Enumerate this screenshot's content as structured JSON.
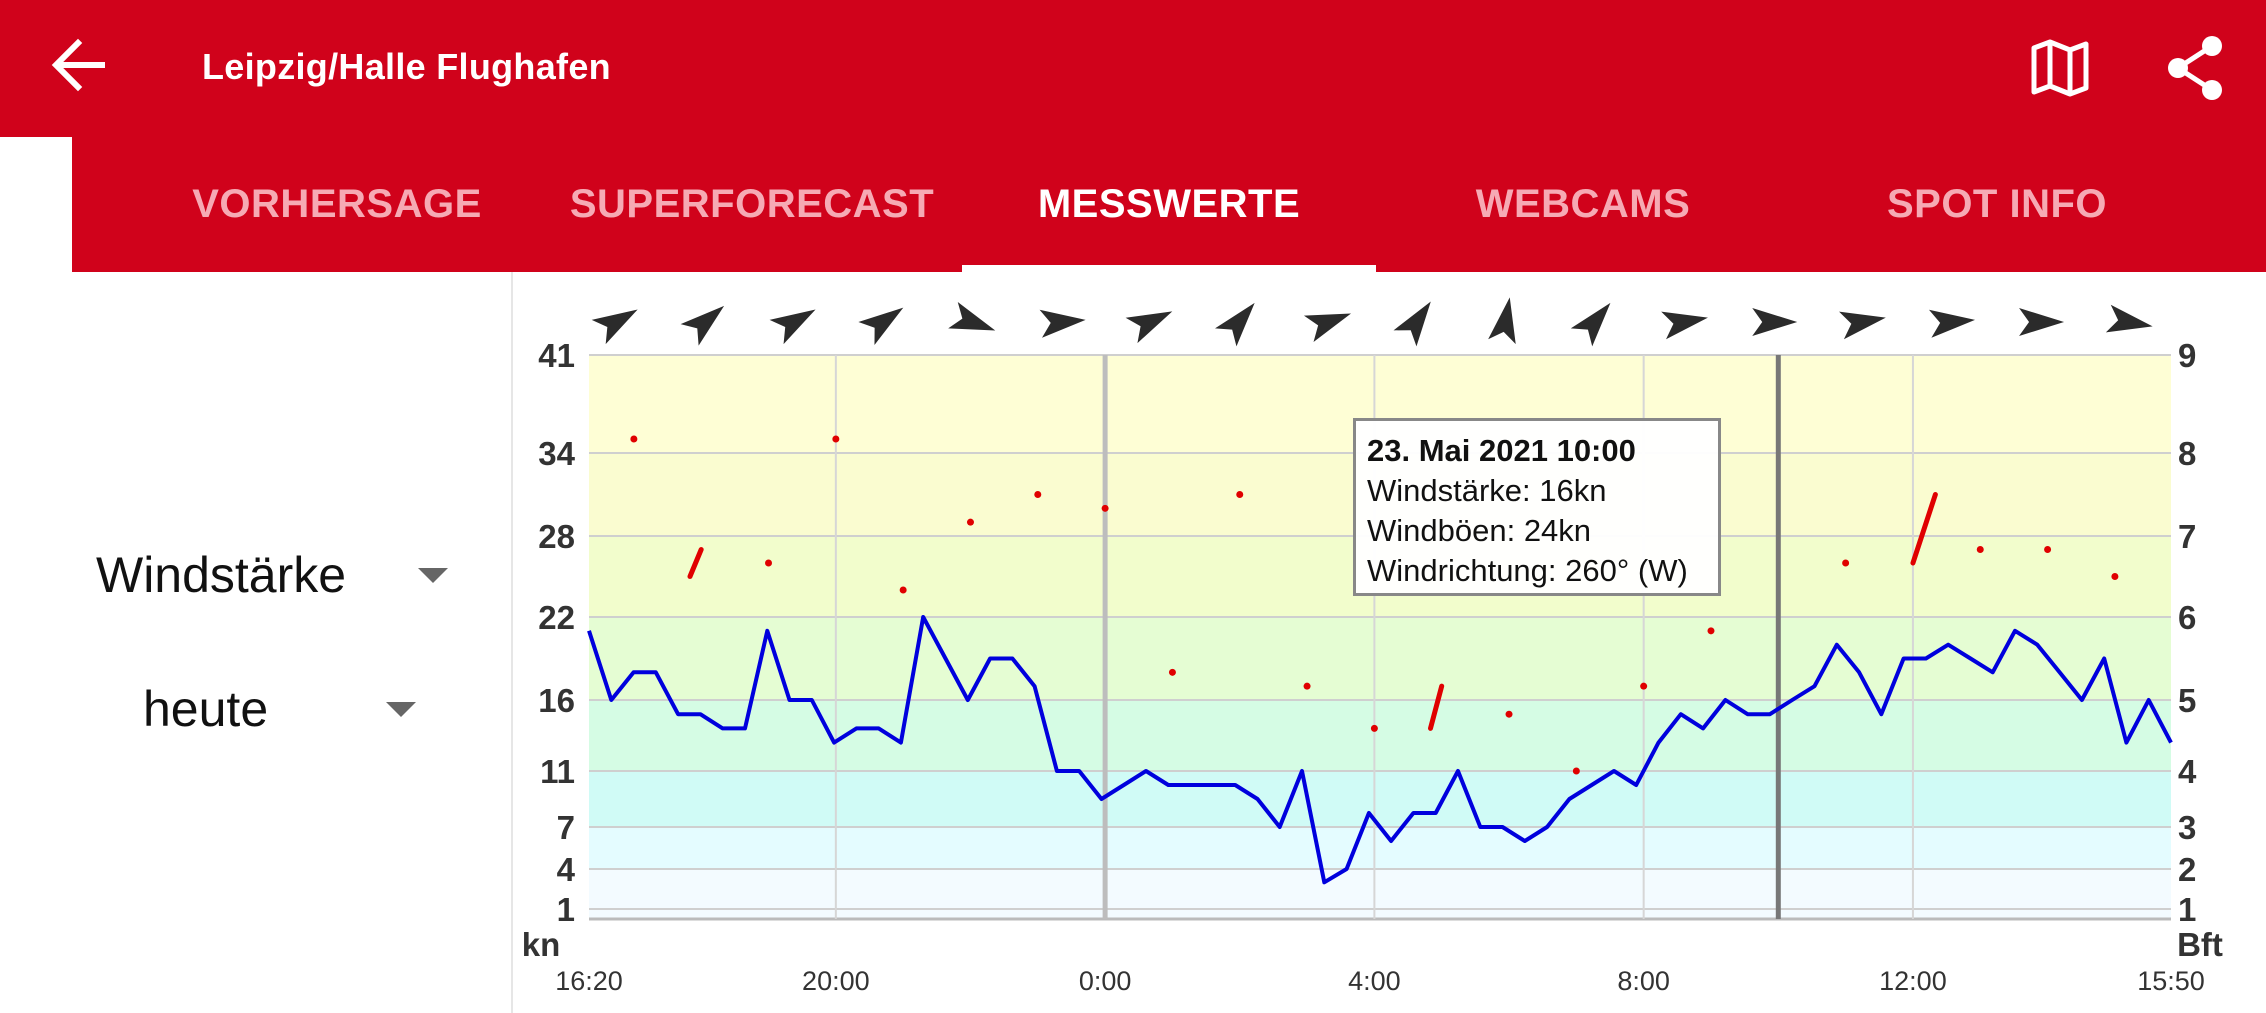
{
  "header": {
    "title": "Leipzig/Halle Flughafen",
    "back_icon": "arrow-left-icon",
    "map_icon": "map-icon",
    "share_icon": "share-icon",
    "color": "#d0021b"
  },
  "tabs": [
    {
      "label": "VORHERSAGE",
      "active": false
    },
    {
      "label": "SUPERFORECAST",
      "active": false
    },
    {
      "label": "MESSWERTE",
      "active": true
    },
    {
      "label": "WEBCAMS",
      "active": false
    },
    {
      "label": "SPOT INFO",
      "active": false
    }
  ],
  "controls": {
    "parameter": "Windstärke",
    "period": "heute"
  },
  "chart_data": {
    "type": "line",
    "left_unit": "kn",
    "right_unit": "Bft",
    "y_ticks_kn": [
      1,
      4,
      7,
      11,
      16,
      22,
      28,
      34,
      41
    ],
    "y_ticks_bft": [
      1,
      2,
      3,
      4,
      5,
      6,
      7,
      8,
      9
    ],
    "x_tick_labels": [
      "16:20",
      "20:00",
      "0:00",
      "4:00",
      "8:00",
      "12:00",
      "15:50"
    ],
    "x_range": [
      "2021-05-22 16:20",
      "2021-05-23 15:50"
    ],
    "series": [
      {
        "color": "#0000dd",
        "values": [
          21,
          16,
          18,
          18,
          15,
          15,
          14,
          14,
          21,
          16,
          16,
          13,
          14,
          14,
          13,
          22,
          19,
          16,
          19,
          19,
          17,
          11,
          11,
          9,
          10,
          11,
          10,
          10,
          10,
          10,
          9,
          7,
          11,
          3,
          4,
          8,
          6,
          8,
          8,
          11,
          7,
          7,
          6,
          7,
          9,
          10,
          11,
          10,
          13,
          15,
          14,
          16,
          15,
          15,
          16,
          17,
          20,
          18,
          15,
          19,
          19,
          20,
          19,
          18,
          21,
          20,
          18,
          16,
          19,
          13,
          16,
          13
        ]
      }
    ],
    "gusts": [
      {
        "time": "2021-05-22 17:00",
        "value": 35
      },
      {
        "time": "2021-05-22 19:00",
        "value": 26
      },
      {
        "time": "2021-05-22 20:00",
        "value": 35
      },
      {
        "time": "2021-05-22 21:00",
        "value": 24
      },
      {
        "time": "2021-05-22 22:00",
        "value": 29
      },
      {
        "time": "2021-05-22 23:00",
        "value": 31
      },
      {
        "time": "2021-05-23 00:00",
        "value": 30
      },
      {
        "time": "2021-05-23 01:00",
        "value": 18
      },
      {
        "time": "2021-05-23 02:00",
        "value": 31
      },
      {
        "time": "2021-05-23 03:00",
        "value": 17
      },
      {
        "time": "2021-05-23 04:00",
        "value": 14
      },
      {
        "time": "2021-05-23 06:00",
        "value": 15
      },
      {
        "time": "2021-05-23 07:00",
        "value": 11
      },
      {
        "time": "2021-05-23 08:00",
        "value": 17
      },
      {
        "time": "2021-05-23 09:00",
        "value": 21
      },
      {
        "time": "2021-05-23 11:00",
        "value": 26
      },
      {
        "time": "2021-05-23 13:00",
        "value": 27
      },
      {
        "time": "2021-05-23 14:00",
        "value": 27
      },
      {
        "time": "2021-05-23 15:00",
        "value": 25
      }
    ],
    "gust_color": "#e00000",
    "gust_streaks": [
      {
        "t1": "2021-05-22 17:50",
        "v1": 25,
        "t2": "2021-05-22 18:00",
        "v2": 27
      },
      {
        "t1": "2021-05-23 04:50",
        "v1": 14,
        "t2": "2021-05-23 05:00",
        "v2": 17
      },
      {
        "t1": "2021-05-23 12:00",
        "v1": 26,
        "t2": "2021-05-23 12:20",
        "v2": 31
      }
    ],
    "wind_direction_arrows_deg": [
      240,
      230,
      240,
      235,
      290,
      265,
      245,
      220,
      250,
      215,
      190,
      220,
      260,
      270,
      260,
      265,
      270,
      280
    ],
    "selected_time": "2021-05-23 10:00",
    "band_colors": [
      "#f3fbff",
      "#e4fcff",
      "#d0fbf6",
      "#d5fce4",
      "#e5fdd3",
      "#f2fdcc",
      "#fafcd0",
      "#fefed5"
    ],
    "tooltip": {
      "title": "23. Mai 2021 10:00",
      "line1": "Windstärke: 16kn",
      "line2": "Windböen: 24kn",
      "line3": "Windrichtung: 260° (W)"
    }
  }
}
